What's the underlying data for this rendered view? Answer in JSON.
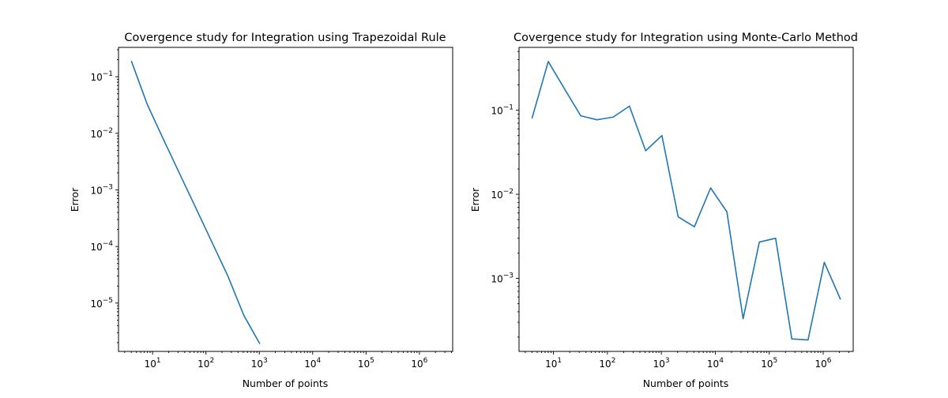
{
  "chart_data": [
    {
      "type": "line",
      "title": "Covergence study for Integration using Trapezoidal Rule",
      "xlabel": "Number of points",
      "ylabel": "Error",
      "xscale": "log",
      "yscale": "log",
      "xlim": [
        2.3,
        4200000
      ],
      "ylim": [
        1.4e-06,
        0.33
      ],
      "xticks": [
        10,
        100,
        1000,
        10000,
        100000,
        1000000
      ],
      "xtick_labels": [
        {
          "base": "10",
          "exp": "1"
        },
        {
          "base": "10",
          "exp": "2"
        },
        {
          "base": "10",
          "exp": "3"
        },
        {
          "base": "10",
          "exp": "4"
        },
        {
          "base": "10",
          "exp": "5"
        },
        {
          "base": "10",
          "exp": "6"
        }
      ],
      "yticks": [
        1e-05,
        0.0001,
        0.001,
        0.01,
        0.1
      ],
      "ytick_labels": [
        {
          "base": "10",
          "exp": "−5"
        },
        {
          "base": "10",
          "exp": "−4"
        },
        {
          "base": "10",
          "exp": "−3"
        },
        {
          "base": "10",
          "exp": "−2"
        },
        {
          "base": "10",
          "exp": "−1"
        }
      ],
      "grid": false,
      "color": "#1f77b4",
      "series": [
        {
          "x": [
            4,
            8,
            16,
            32,
            64,
            128,
            256,
            512,
            1024
          ],
          "y": [
            0.19,
            0.032,
            0.0078,
            0.00195,
            0.00049,
            0.000122,
            3.05e-05,
            6.1e-06,
            1.9e-06
          ]
        }
      ]
    },
    {
      "type": "line",
      "title": "Covergence study for Integration using Monte-Carlo Method",
      "xlabel": "Number of points",
      "ylabel": "Error",
      "xscale": "log",
      "yscale": "log",
      "xlim": [
        2.3,
        3600000
      ],
      "ylim": [
        0.000135,
        0.56
      ],
      "xticks": [
        10,
        100,
        1000,
        10000,
        100000,
        1000000
      ],
      "xtick_labels": [
        {
          "base": "10",
          "exp": "1"
        },
        {
          "base": "10",
          "exp": "2"
        },
        {
          "base": "10",
          "exp": "3"
        },
        {
          "base": "10",
          "exp": "4"
        },
        {
          "base": "10",
          "exp": "5"
        },
        {
          "base": "10",
          "exp": "6"
        }
      ],
      "yticks": [
        0.001,
        0.01,
        0.1
      ],
      "ytick_labels": [
        {
          "base": "10",
          "exp": "−3"
        },
        {
          "base": "10",
          "exp": "−2"
        },
        {
          "base": "10",
          "exp": "−1"
        }
      ],
      "grid": false,
      "color": "#1f77b4",
      "series": [
        {
          "x": [
            4,
            8,
            16,
            32,
            64,
            128,
            256,
            512,
            1024,
            2048,
            4096,
            8192,
            16384,
            32768,
            65536,
            131072,
            262144,
            524288,
            1048576,
            2097152
          ],
          "y": [
            0.08,
            0.38,
            0.18,
            0.086,
            0.077,
            0.083,
            0.112,
            0.033,
            0.05,
            0.0054,
            0.0041,
            0.0119,
            0.0062,
            0.00033,
            0.0027,
            0.003,
            0.00019,
            0.000185,
            0.00155,
            0.00056
          ]
        }
      ]
    }
  ]
}
